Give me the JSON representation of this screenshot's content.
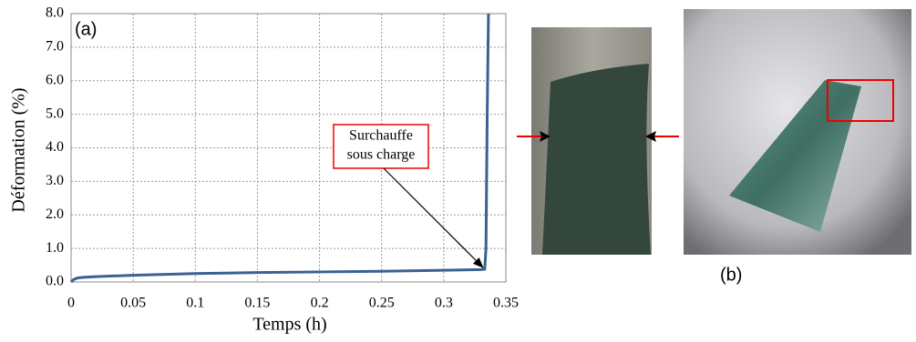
{
  "chart_data": {
    "type": "line",
    "panel_label": "(a)",
    "xlabel": "Temps (h)",
    "ylabel": "Déformation (%)",
    "x": [
      0,
      0.002,
      0.005,
      0.01,
      0.02,
      0.05,
      0.1,
      0.15,
      0.2,
      0.25,
      0.3,
      0.33,
      0.333,
      0.334,
      0.335,
      0.336
    ],
    "values": [
      0,
      0.07,
      0.12,
      0.14,
      0.16,
      0.2,
      0.25,
      0.28,
      0.3,
      0.32,
      0.35,
      0.37,
      0.38,
      1.0,
      5.0,
      8.0
    ],
    "color": "#3a6191",
    "xlim": [
      0,
      0.35
    ],
    "xticks": [
      0,
      0.05,
      0.1,
      0.15,
      0.2,
      0.25,
      0.3,
      0.35
    ],
    "ylim": [
      0,
      8
    ],
    "yticks": [
      {
        "value": 0,
        "label": "0.0"
      },
      {
        "value": 1,
        "label": "1.0"
      },
      {
        "value": 2,
        "label": "2.0"
      },
      {
        "value": 3,
        "label": "3.0"
      },
      {
        "value": 4,
        "label": "4.0"
      },
      {
        "value": 5,
        "label": "5.0"
      },
      {
        "value": 6,
        "label": "6.0"
      },
      {
        "value": 7,
        "label": "7.0"
      },
      {
        "value": 8,
        "label": "8.0"
      }
    ],
    "grid": true,
    "annotation": {
      "lines": [
        "Surchauffe",
        "sous charge"
      ],
      "point_index": 12
    }
  },
  "photos": {
    "label": "(b)"
  }
}
